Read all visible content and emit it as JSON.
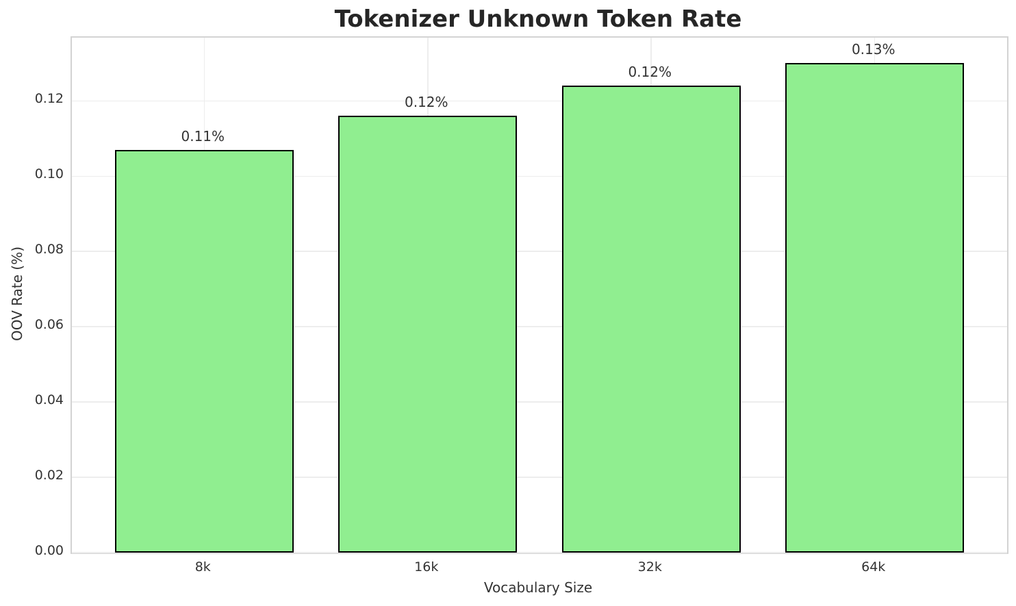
{
  "chart_data": {
    "type": "bar",
    "title": "Tokenizer Unknown Token Rate",
    "xlabel": "Vocabulary Size",
    "ylabel": "OOV Rate (%)",
    "categories": [
      "8k",
      "16k",
      "32k",
      "64k"
    ],
    "values": [
      0.107,
      0.116,
      0.124,
      0.13
    ],
    "bar_labels": [
      "0.11%",
      "0.12%",
      "0.12%",
      "0.13%"
    ],
    "yticks": [
      0.0,
      0.02,
      0.04,
      0.06,
      0.08,
      0.1,
      0.12
    ],
    "ytick_labels": [
      "0.00",
      "0.02",
      "0.04",
      "0.06",
      "0.08",
      "0.10",
      "0.12"
    ],
    "ylim": [
      0,
      0.1368
    ],
    "grid": true,
    "legend_position": "none",
    "colors": {
      "bar_fill": "#90EE90",
      "bar_edge": "#000000",
      "grid": "#ededed",
      "spine": "#d3d3d3",
      "title_text": "#262626",
      "tick_text": "#333333",
      "background": "#ffffff"
    }
  }
}
